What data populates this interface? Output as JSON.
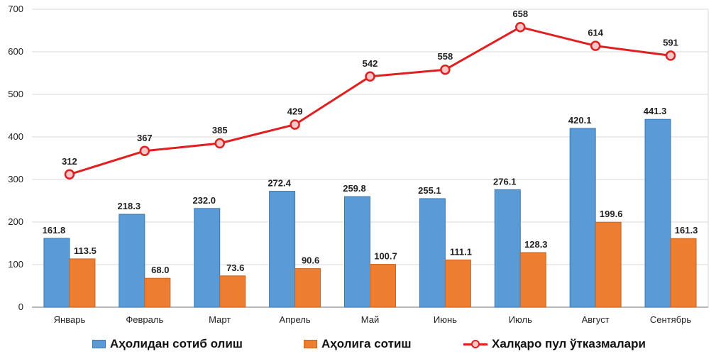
{
  "chart_data": {
    "type": "bar",
    "categories": [
      "Январь",
      "Февраль",
      "Март",
      "Апрель",
      "Май",
      "Июнь",
      "Июль",
      "Август",
      "Сентябрь"
    ],
    "ylim": [
      0,
      700
    ],
    "yticks": [
      0,
      100,
      200,
      300,
      400,
      500,
      600,
      700
    ],
    "grid": true,
    "legend_position": "bottom",
    "series": [
      {
        "name": "Аҳолидан сотиб олиш",
        "type": "bar",
        "color": "#5b9bd5",
        "values": [
          161.8,
          218.3,
          232.0,
          272.4,
          259.8,
          255.1,
          276.1,
          420.1,
          441.3
        ],
        "labels": [
          "161.8",
          "218.3",
          "232.0",
          "272.4",
          "259.8",
          "255.1",
          "276.1",
          "420.1",
          "441.3"
        ]
      },
      {
        "name": "Аҳолига сотиш",
        "type": "bar",
        "color": "#ed7d31",
        "values": [
          113.5,
          68.0,
          73.6,
          90.6,
          100.7,
          111.1,
          128.3,
          199.6,
          161.3
        ],
        "labels": [
          "113.5",
          "68.0",
          "73.6",
          "90.6",
          "100.7",
          "111.1",
          "128.3",
          "199.6",
          "161.3"
        ]
      },
      {
        "name": "Халқаро пул ўтказмалари",
        "type": "line",
        "color": "#e02020",
        "values": [
          312,
          367,
          385,
          429,
          542,
          558,
          658,
          614,
          591
        ],
        "labels": [
          "312",
          "367",
          "385",
          "429",
          "542",
          "558",
          "658",
          "614",
          "591"
        ]
      }
    ]
  }
}
